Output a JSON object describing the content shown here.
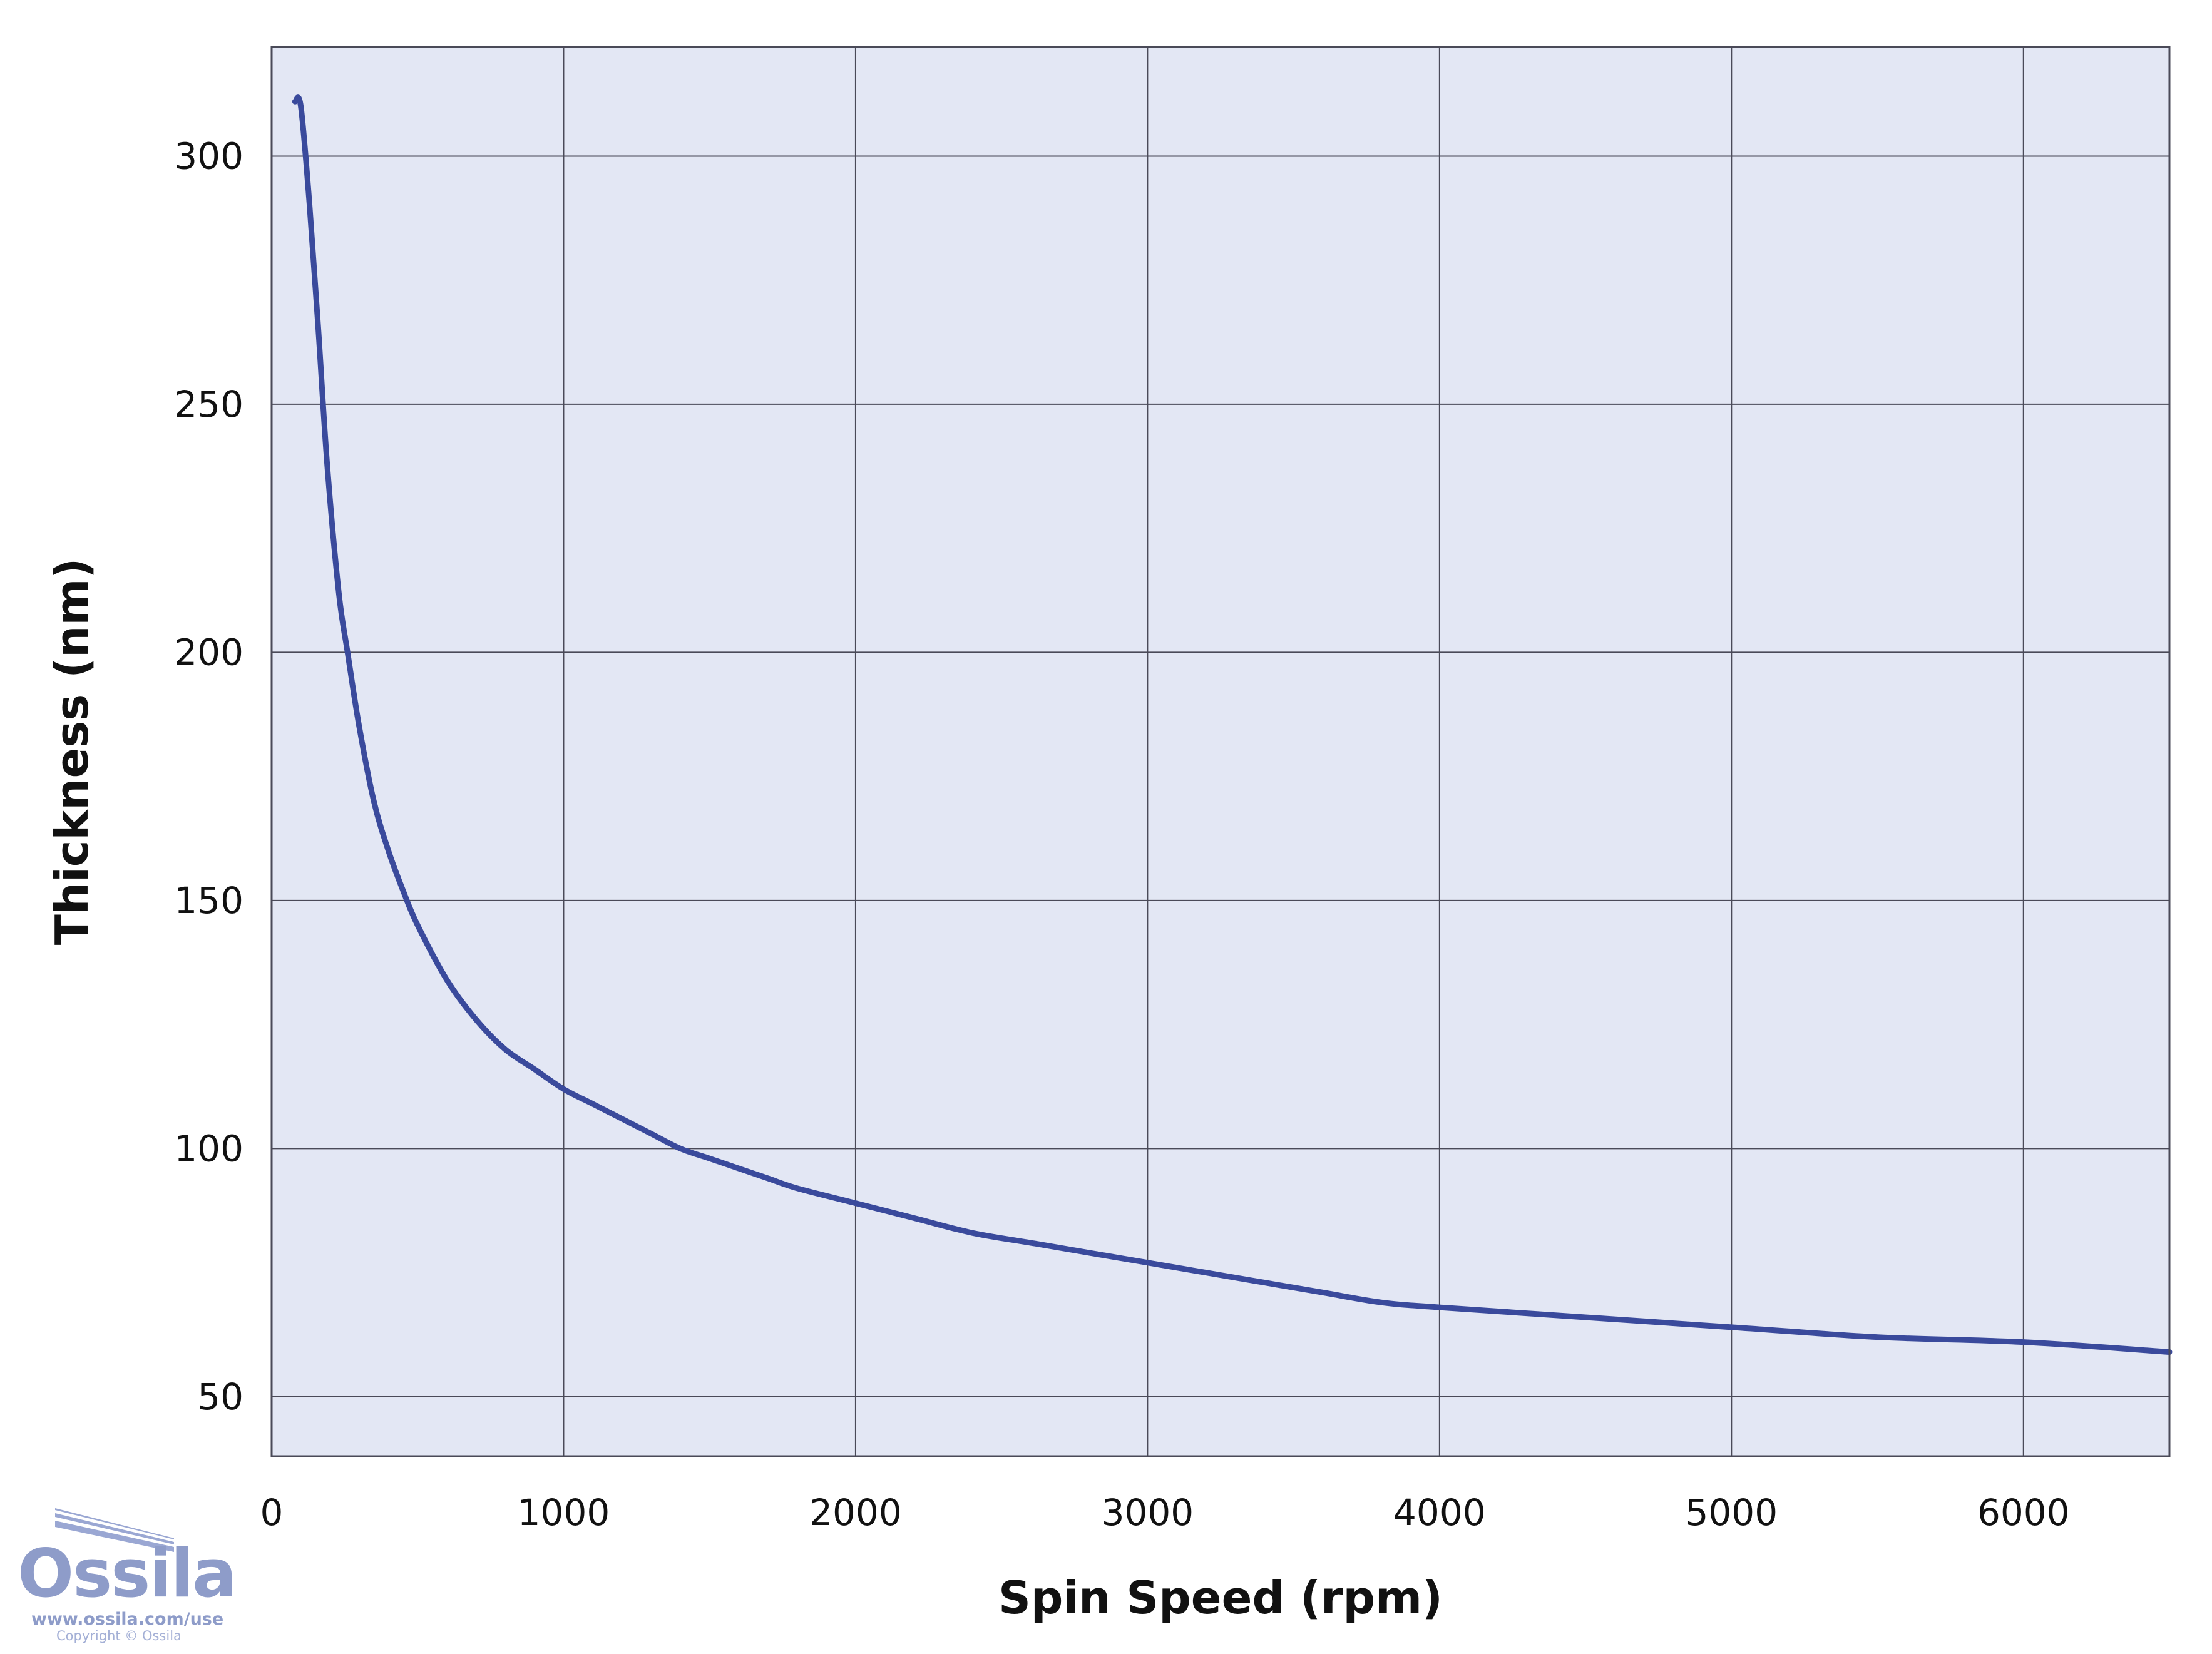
{
  "chart_data": {
    "type": "line",
    "title": "",
    "xlabel": "Spin Speed (rpm)",
    "ylabel": "Thickness (nm)",
    "xlim": [
      0,
      6500
    ],
    "ylim": [
      38,
      322
    ],
    "xticks": [
      0,
      1000,
      2000,
      3000,
      4000,
      5000,
      6000
    ],
    "yticks": [
      50,
      100,
      150,
      200,
      250,
      300
    ],
    "grid": true,
    "colors": {
      "line": "#3a4a9c",
      "plot_bg": "#e3e7f4",
      "grid": "#4a4a58",
      "frame": "#4a4a58"
    },
    "series": [
      {
        "x": [
          80,
          100,
          130,
          160,
          190,
          230,
          260,
          300,
          350,
          400,
          450,
          500,
          600,
          700,
          800,
          900,
          1000,
          1100,
          1200,
          1300,
          1400,
          1500,
          1600,
          1700,
          1800,
          2000,
          2200,
          2400,
          2600,
          2800,
          3000,
          3200,
          3400,
          3600,
          3800,
          4000,
          4500,
          5000,
          5500,
          6000,
          6500
        ],
        "y": [
          311,
          310,
          290,
          265,
          238,
          212,
          200,
          185,
          170,
          160,
          152,
          145,
          134,
          126,
          120,
          116,
          112,
          109,
          106,
          103,
          100,
          98,
          96,
          94,
          92,
          89,
          86,
          83,
          81,
          79,
          77,
          75,
          73,
          71,
          69,
          68,
          66,
          64,
          62,
          61,
          59
        ]
      }
    ]
  },
  "logo": {
    "name": "Ossila",
    "url": "www.ossila.com/use",
    "copyright": "Copyright © Ossila"
  }
}
